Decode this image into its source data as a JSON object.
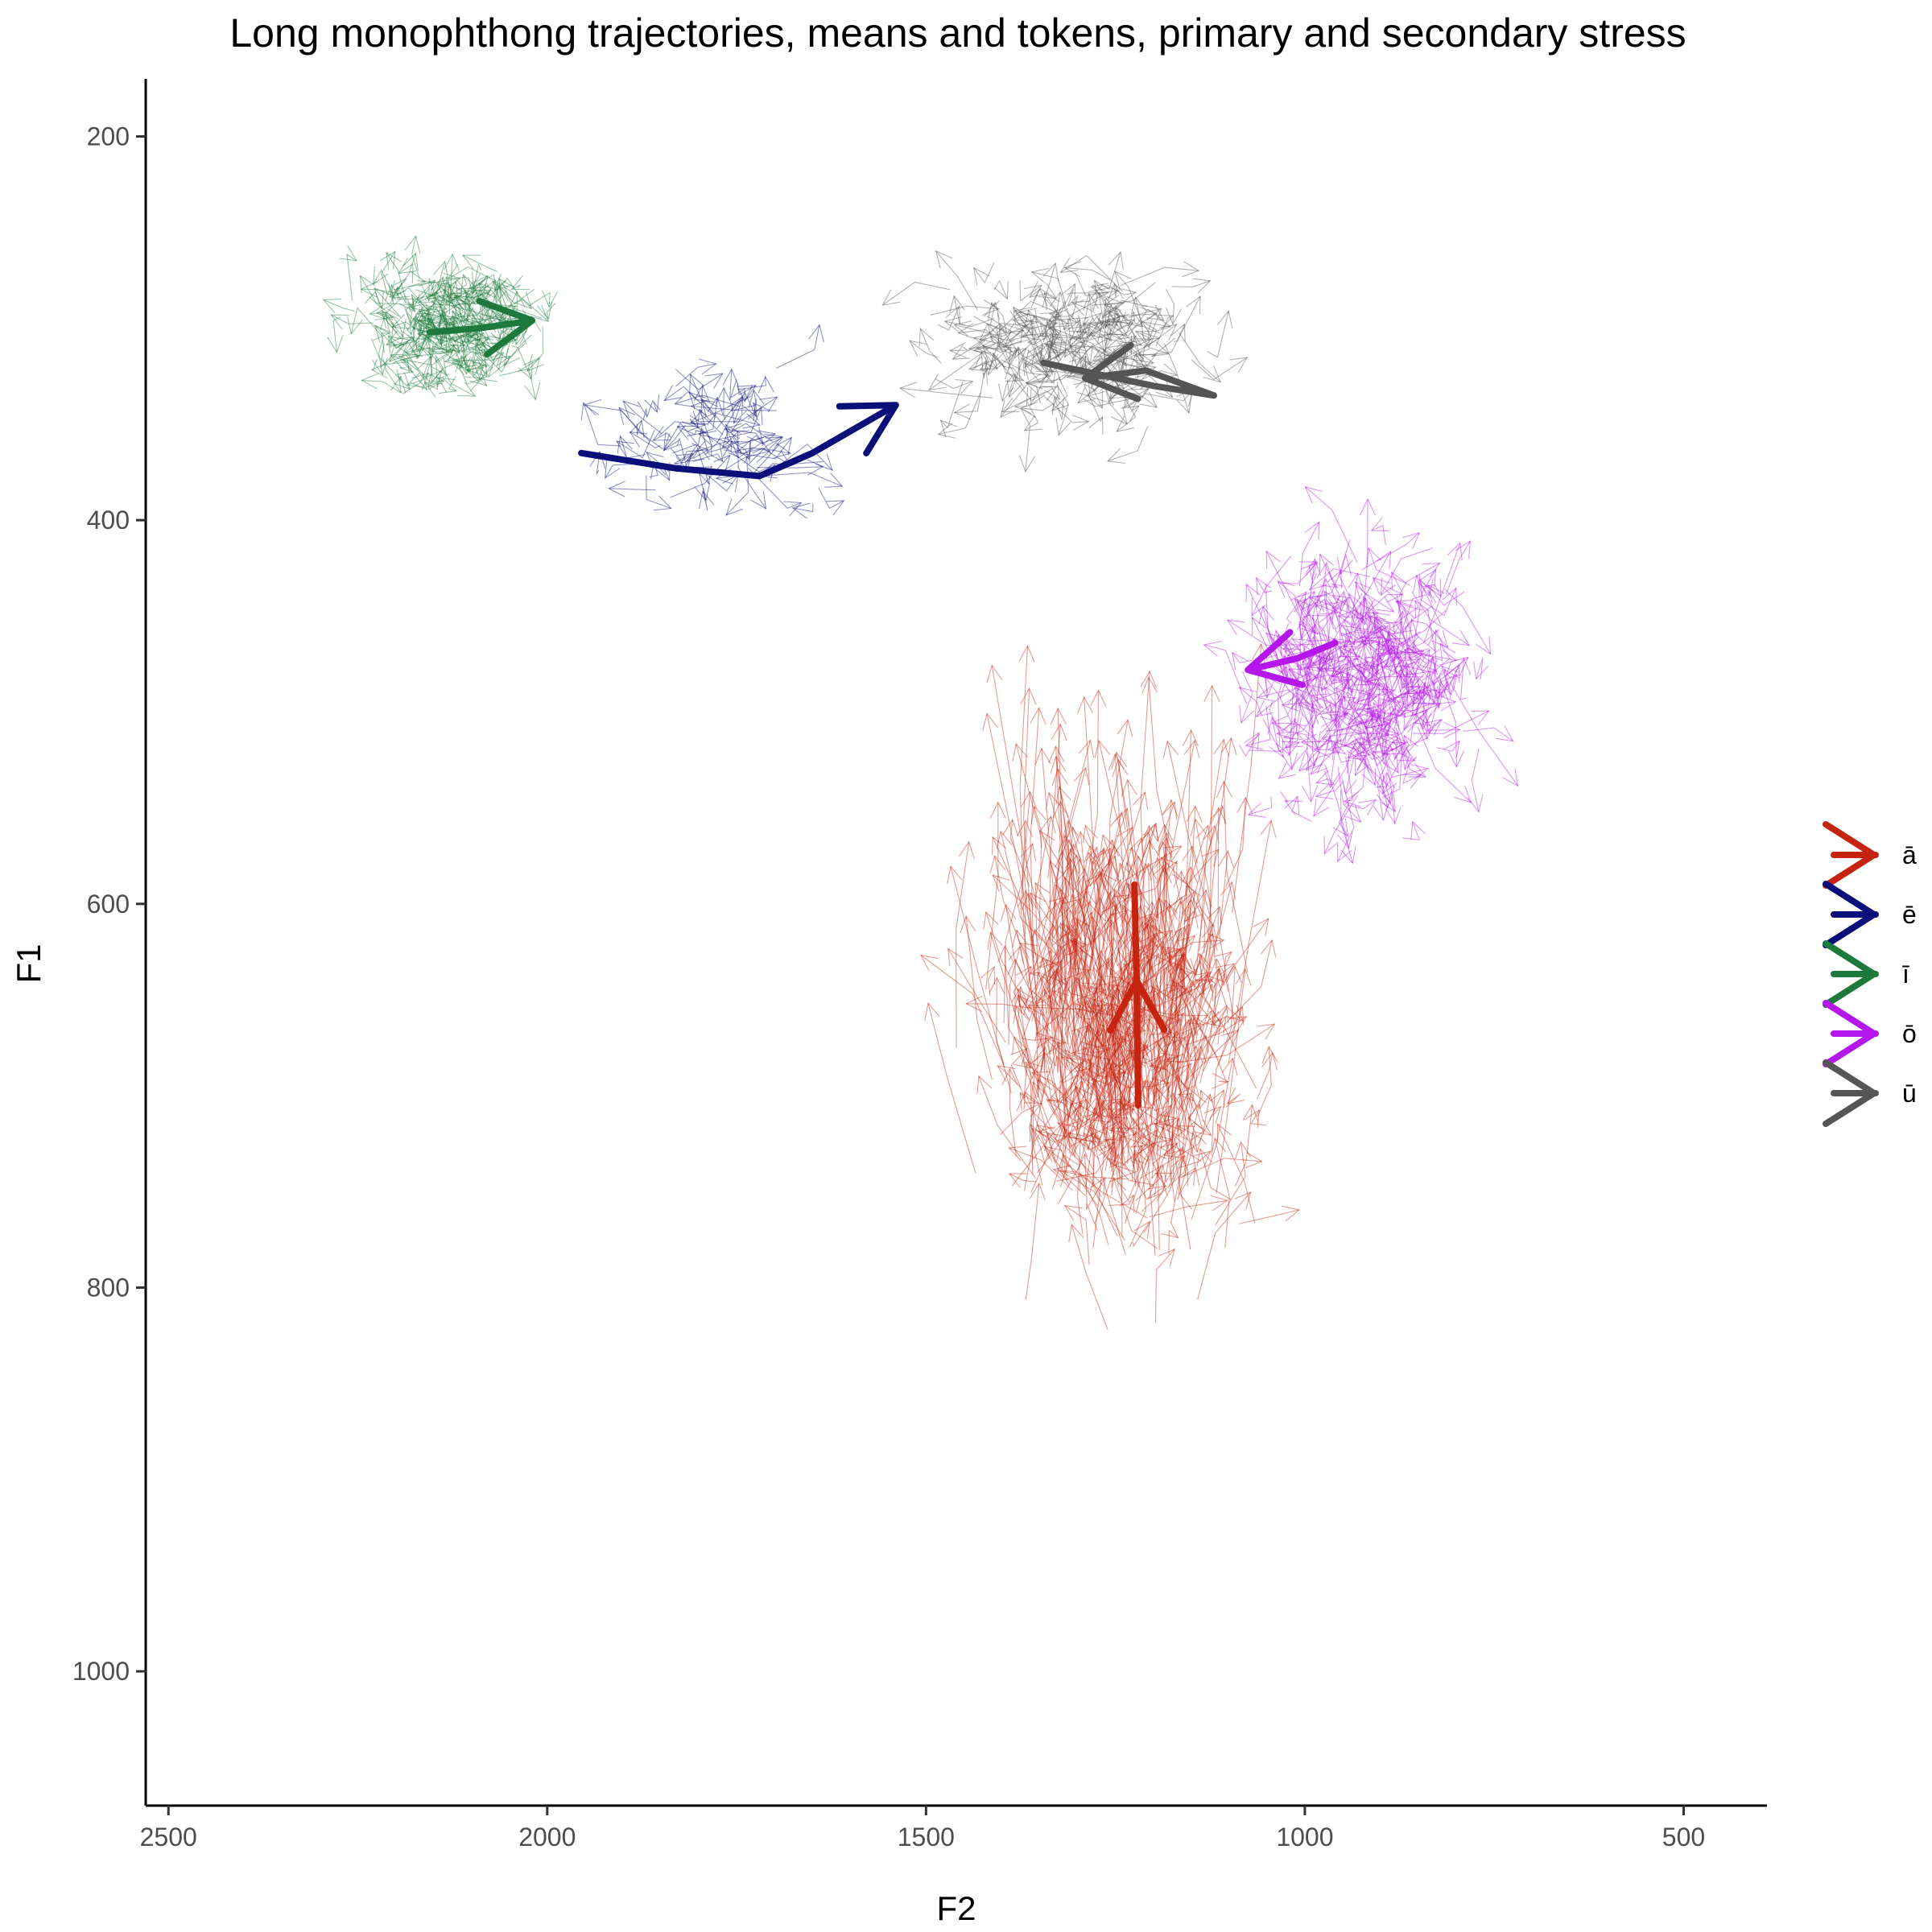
{
  "chart_data": {
    "type": "line",
    "title": "Long monophthong trajectories, means and tokens, primary and secondary stress",
    "xlabel": "F2",
    "ylabel": "F1",
    "x_reversed": true,
    "y_reversed": true,
    "xlim": [
      2530,
      390
    ],
    "ylim": [
      170,
      1070
    ],
    "x_ticks": [
      2500,
      2000,
      1500,
      1000,
      500
    ],
    "y_ticks": [
      200,
      400,
      600,
      800,
      1000
    ],
    "grid": false,
    "legend_position": "right",
    "series": [
      {
        "name": "ā",
        "color": "#c52410",
        "mean_trajectory": [
          [
            1225,
            590
          ],
          [
            1222,
            640
          ],
          [
            1220,
            705
          ]
        ],
        "arrow_at_start": true,
        "token_cloud": {
          "f2_center": 1250,
          "f2_spread": 270,
          "f1_center": 690,
          "f1_spread": 150,
          "count": 620
        }
      },
      {
        "name": "ē",
        "color": "#0b0f7a",
        "mean_trajectory": [
          [
            1955,
            365
          ],
          [
            1830,
            373
          ],
          [
            1720,
            377
          ],
          [
            1650,
            365
          ],
          [
            1540,
            340
          ]
        ],
        "arrow_at_start": false,
        "token_cloud": {
          "f2_center": 1780,
          "f2_spread": 260,
          "f1_center": 360,
          "f1_spread": 55,
          "count": 90
        }
      },
      {
        "name": "ī",
        "color": "#1e7a3c",
        "mean_trajectory": [
          [
            2155,
            302
          ],
          [
            2090,
            300
          ],
          [
            2020,
            296
          ]
        ],
        "arrow_at_start": false,
        "token_cloud": {
          "f2_center": 2130,
          "f2_spread": 190,
          "f1_center": 300,
          "f1_spread": 45,
          "count": 230
        }
      },
      {
        "name": "ō",
        "color": "#b416ec",
        "mean_trajectory": [
          [
            960,
            464
          ],
          [
            1010,
            472
          ],
          [
            1075,
            478
          ]
        ],
        "arrow_at_start": false,
        "token_cloud": {
          "f2_center": 930,
          "f2_spread": 230,
          "f1_center": 485,
          "f1_spread": 95,
          "count": 380
        }
      },
      {
        "name": "ū",
        "color": "#555555",
        "mean_trajectory": [
          [
            1345,
            318
          ],
          [
            1200,
            330
          ],
          [
            1120,
            335
          ],
          [
            1210,
            322
          ],
          [
            1290,
            326
          ]
        ],
        "arrow_at_start": false,
        "token_cloud": {
          "f2_center": 1320,
          "f2_spread": 270,
          "f1_center": 310,
          "f1_spread": 55,
          "count": 230
        }
      }
    ]
  }
}
